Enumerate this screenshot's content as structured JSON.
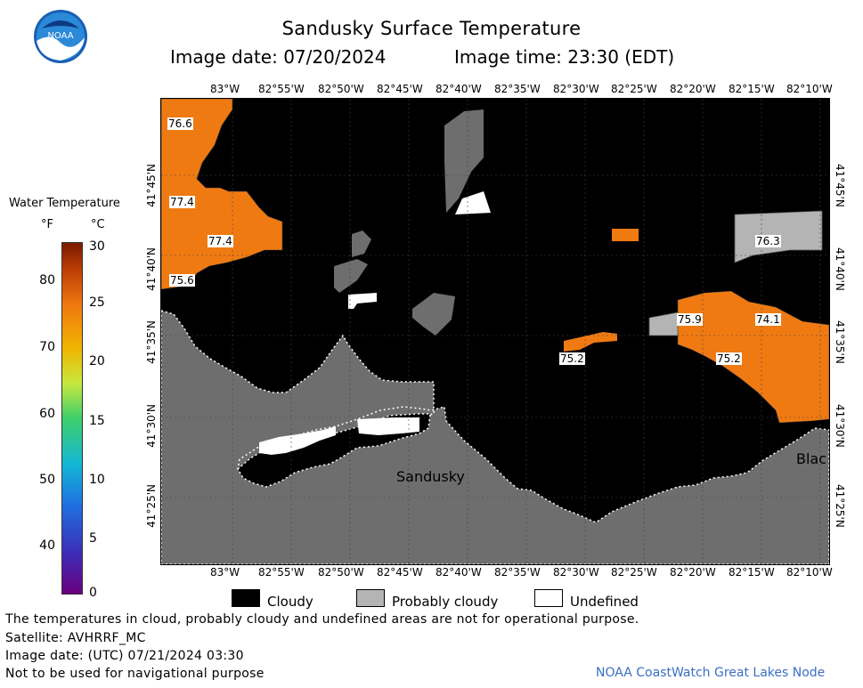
{
  "header": {
    "title": "Sandusky Surface Temperature",
    "image_date": "Image date: 07/20/2024",
    "image_time": "Image time: 23:30 (EDT)"
  },
  "logo": {
    "text": "NOAA"
  },
  "map": {
    "lon_labels": [
      "83°W",
      "82°55'W",
      "82°50'W",
      "82°45'W",
      "82°40'W",
      "82°35'W",
      "82°30'W",
      "82°25'W",
      "82°20'W",
      "82°15'W",
      "82°10'W"
    ],
    "lat_labels": [
      "41°45'N",
      "41°40'N",
      "41°35'N",
      "41°30'N",
      "41°25'N"
    ],
    "temperature_labels": [
      "76.6",
      "77.4",
      "77.4",
      "75.6",
      "76.3",
      "75.9",
      "74.1",
      "75.2",
      "75.2"
    ],
    "place_labels": {
      "sandusky": "Sandusky",
      "black": "Blac"
    },
    "colors": {
      "water_unknown": "#000000",
      "land": "#6e6e6e",
      "probably_cloudy": "#b4b4b4",
      "warm_water": "#f07a12"
    }
  },
  "colorbar": {
    "title": "Water Temperature",
    "unit_f": "°F",
    "unit_c": "°C",
    "fahrenheit_ticks": [
      "80",
      "70",
      "60",
      "50",
      "40"
    ],
    "celsius_ticks": [
      "30",
      "25",
      "20",
      "15",
      "10",
      "5",
      "0"
    ]
  },
  "legend": {
    "cloudy": "Cloudy",
    "probably_cloudy": "Probably cloudy",
    "undefined": "Undefined"
  },
  "footer": {
    "disclaimer": "The temperatures in cloud, probably cloudy and undefined areas are not for operational purpose.",
    "satellite": "Satellite: AVHRRF_MC",
    "utc_date": "Image date: (UTC) 07/21/2024  03:30",
    "navigation": "Not to be used for navigational purpose",
    "credit": "NOAA CoastWatch Great Lakes Node"
  }
}
